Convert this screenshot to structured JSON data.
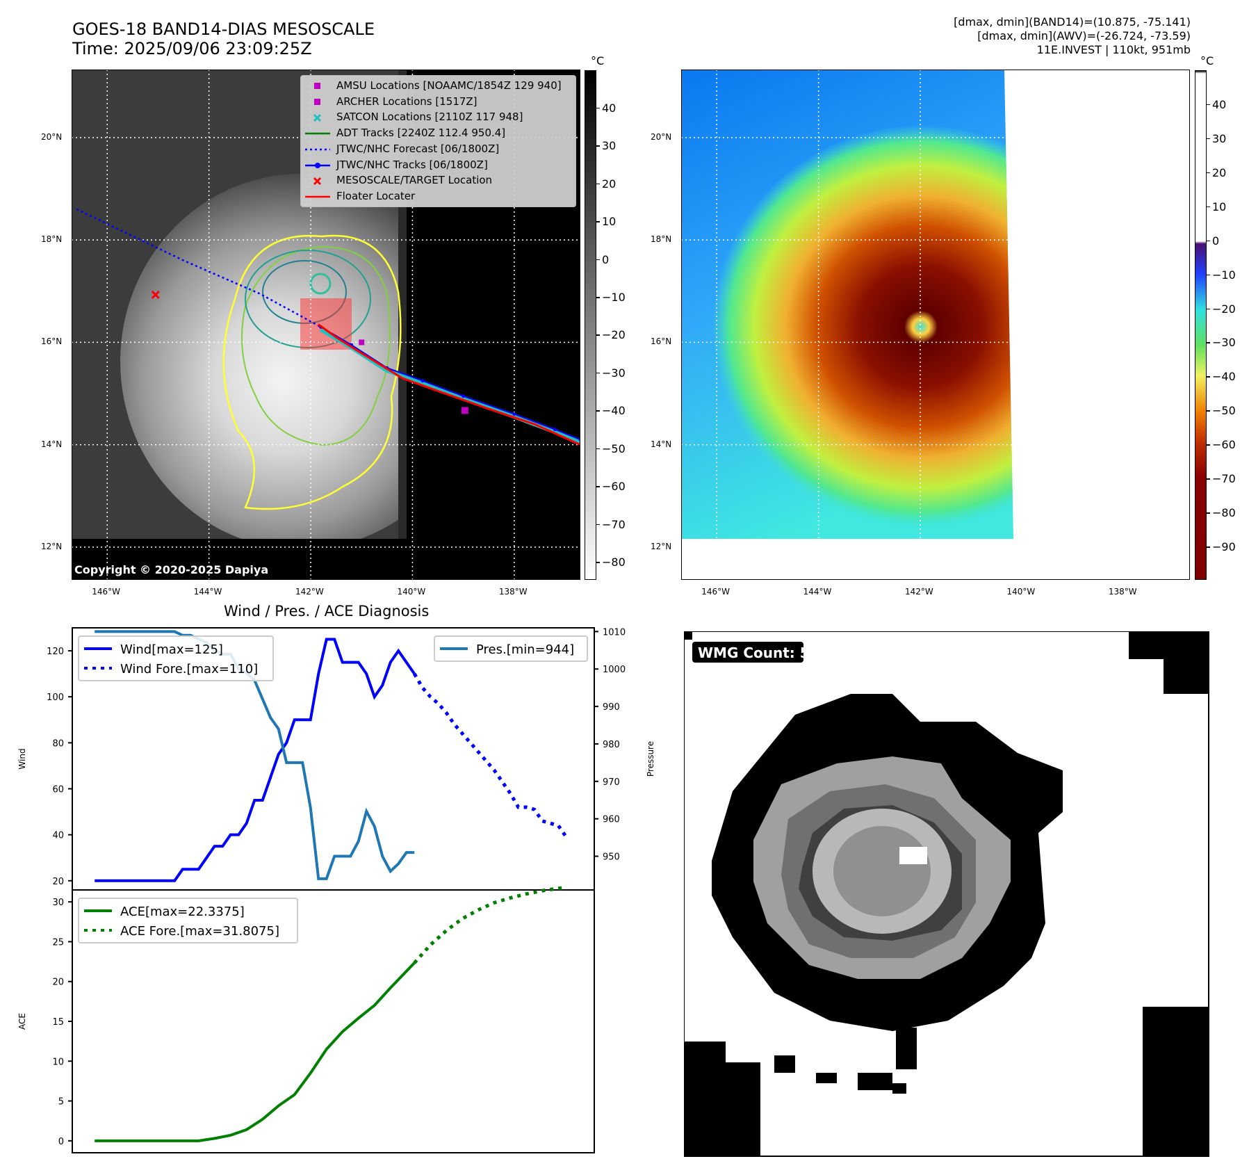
{
  "header": {
    "title": "GOES-18 BAND14-DIAS MESOSCALE",
    "time": "Time: 2025/09/06 23:09:25Z",
    "stats_band14": "[dmax, dmin](BAND14)=(10.875, -75.141)",
    "stats_awv": "[dmax, dmin](AWV)=(-26.724, -73.59)",
    "storm_info": "11E.INVEST | 110kt, 951mb"
  },
  "map": {
    "lon_ticks": [
      "146°W",
      "144°W",
      "142°W",
      "140°W",
      "138°W"
    ],
    "lon_values": [
      -146,
      -144,
      -142,
      -140,
      -138
    ],
    "lat_ticks": [
      "20°N",
      "18°N",
      "16°N",
      "14°N",
      "12°N"
    ],
    "lat_values": [
      20,
      18,
      16,
      14,
      12
    ],
    "lon_range": [
      -146.7,
      -136.7
    ],
    "lat_range": [
      11.36,
      21.33
    ],
    "copyright": "Copyright © 2020-2025 Dapiya",
    "legend": [
      {
        "label": "AMSU Locations [NOAAMC/1854Z 129 940]",
        "color": "#c000c0",
        "marker": "square"
      },
      {
        "label": "ARCHER Locations [1517Z]",
        "color": "#c000c0",
        "marker": "square"
      },
      {
        "label": "SATCON Locations [2110Z 117 948]",
        "color": "#20c0c0",
        "marker": "x"
      },
      {
        "label": "ADT Tracks [2240Z 112.4 950.4]",
        "color": "#008000",
        "marker": "line"
      },
      {
        "label": "JTWC/NHC Forecast [06/1800Z]",
        "color": "#0000ff",
        "marker": "dotted"
      },
      {
        "label": "JTWC/NHC Tracks [06/1800Z]",
        "color": "#0000ff",
        "marker": "line-dot"
      },
      {
        "label": "MESOSCALE/TARGET Location",
        "color": "#ff0000",
        "marker": "x"
      },
      {
        "label": "Floater Locater",
        "color": "#ff0000",
        "marker": "line"
      }
    ],
    "center": [
      -141.8,
      16.3
    ],
    "target": [
      -145.05,
      16.93
    ],
    "archer": [
      -138.97,
      14.67
    ],
    "amsu": [
      -141.0,
      16.0
    ],
    "forecast_track": [
      [
        -146.6,
        18.6
      ],
      [
        -144.5,
        17.6
      ],
      [
        -143,
        16.95
      ],
      [
        -141.8,
        16.3
      ]
    ],
    "best_track": [
      [
        -141.8,
        16.3
      ],
      [
        -141.2,
        15.95
      ],
      [
        -140.5,
        15.5
      ],
      [
        -139.8,
        15.25
      ],
      [
        -139,
        14.95
      ],
      [
        -138,
        14.6
      ],
      [
        -137.2,
        14.3
      ],
      [
        -136.7,
        14.1
      ]
    ],
    "floater_track": [
      [
        -141.85,
        16.35
      ],
      [
        -141.5,
        16.1
      ],
      [
        -141.1,
        15.85
      ],
      [
        -140.2,
        15.3
      ],
      [
        -139.5,
        15.05
      ],
      [
        -138.5,
        14.7
      ],
      [
        -137.6,
        14.4
      ],
      [
        -136.7,
        14.0
      ]
    ]
  },
  "colorbar_left": {
    "unit": "°C",
    "ticks": [
      "40",
      "30",
      "20",
      "10",
      "0",
      "−10",
      "−20",
      "−30",
      "−40",
      "−50",
      "−60",
      "−70",
      "−80"
    ],
    "values": [
      40,
      30,
      20,
      10,
      0,
      -10,
      -20,
      -30,
      -40,
      -50,
      -60,
      -70,
      -80
    ],
    "range": [
      -84.4,
      49.9
    ]
  },
  "colorbar_right": {
    "unit": "°C",
    "ticks": [
      "40",
      "30",
      "20",
      "10",
      "0",
      "−10",
      "−20",
      "−30",
      "−40",
      "−50",
      "−60",
      "−70",
      "−80",
      "−90"
    ],
    "values": [
      40,
      30,
      20,
      10,
      0,
      -10,
      -20,
      -30,
      -40,
      -50,
      -60,
      -70,
      -80,
      -90
    ],
    "range": [
      -99.4,
      50
    ]
  },
  "chart_data": [
    {
      "type": "line",
      "title": "Wind / Pres. / ACE Diagnosis",
      "ylabel": "Wind",
      "y2label": "Pressure",
      "ylim": [
        16,
        130
      ],
      "y2lim": [
        941,
        1011
      ],
      "yticks": [
        20,
        40,
        60,
        80,
        100,
        120
      ],
      "y2ticks": [
        950,
        960,
        970,
        980,
        990,
        1000,
        1010
      ],
      "xlim": [
        -2.8,
        62.5
      ],
      "series": [
        {
          "name": "Wind[max=125]",
          "color": "#0000ff",
          "style": "solid",
          "axis": "left",
          "x": [
            0,
            1,
            2,
            3,
            4,
            5,
            6,
            7,
            8,
            9,
            10,
            11,
            12,
            13,
            14,
            15,
            16,
            17,
            18,
            19,
            20,
            21,
            22,
            23,
            24,
            25,
            26,
            27,
            28,
            29,
            30,
            31,
            32,
            33,
            34,
            35,
            36,
            37,
            38,
            39,
            40
          ],
          "y": [
            20,
            20,
            20,
            20,
            20,
            20,
            20,
            20,
            20,
            20,
            20,
            25,
            25,
            25,
            30,
            35,
            35,
            40,
            40,
            45,
            55,
            55,
            65,
            75,
            80,
            90,
            90,
            90,
            110,
            125,
            125,
            115,
            115,
            115,
            110,
            100,
            105,
            115,
            120,
            115,
            110
          ]
        },
        {
          "name": "Wind Fore.[max=110]",
          "color": "#0000ff",
          "style": "dotted",
          "axis": "left",
          "x": [
            40,
            41,
            42,
            43,
            44,
            45,
            46,
            47,
            48,
            49,
            50,
            51,
            52,
            53,
            54,
            55,
            56,
            57,
            58,
            59
          ],
          "y": [
            110,
            104,
            100,
            97,
            93,
            88,
            84,
            80,
            76,
            72,
            68,
            63,
            58,
            52,
            52,
            51,
            46,
            45,
            44,
            39
          ]
        },
        {
          "name": "Pres.[min=944]",
          "color": "#1f77b4",
          "style": "solid",
          "axis": "right",
          "x": [
            0,
            1,
            2,
            3,
            4,
            5,
            6,
            7,
            8,
            9,
            10,
            11,
            12,
            13,
            14,
            15,
            16,
            17,
            18,
            19,
            20,
            21,
            22,
            23,
            24,
            25,
            26,
            27,
            28,
            29,
            30,
            31,
            32,
            33,
            34,
            35,
            36,
            37,
            38,
            39,
            40
          ],
          "y": [
            1010,
            1010,
            1010,
            1010,
            1010,
            1010,
            1010,
            1010,
            1010,
            1010,
            1010,
            1009,
            1009,
            1008,
            1007,
            1005,
            1004,
            1004,
            1000,
            999,
            997,
            992,
            987,
            984,
            975,
            975,
            975,
            963,
            944,
            944,
            950,
            950,
            950,
            954,
            962,
            958,
            950,
            946,
            948,
            951,
            951
          ]
        }
      ]
    },
    {
      "type": "line",
      "ylabel": "ACE",
      "ylim": [
        -1.5,
        31.5
      ],
      "yticks": [
        0,
        5,
        10,
        15,
        20,
        25,
        30
      ],
      "xlim": [
        -2.8,
        62.5
      ],
      "series": [
        {
          "name": "ACE[max=22.3375]",
          "color": "#008000",
          "style": "solid",
          "x": [
            0,
            5,
            10,
            13,
            15,
            17,
            19,
            21,
            23,
            25,
            27,
            29,
            31,
            33,
            35,
            37,
            40
          ],
          "y": [
            0,
            0,
            0,
            0,
            0.3,
            0.7,
            1.4,
            2.7,
            4.4,
            5.8,
            8.5,
            11.5,
            13.7,
            15.4,
            17.0,
            19.2,
            22.34
          ]
        },
        {
          "name": "ACE Fore.[max=31.8075]",
          "color": "#008000",
          "style": "dotted",
          "x": [
            40,
            42,
            44,
            46,
            48,
            50,
            52,
            54,
            56,
            58,
            59
          ],
          "y": [
            22.34,
            24.6,
            26.4,
            27.9,
            29.0,
            29.9,
            30.5,
            31.0,
            31.4,
            31.7,
            31.81
          ]
        }
      ]
    }
  ],
  "wmg": {
    "label": "WMG Count: 5"
  }
}
